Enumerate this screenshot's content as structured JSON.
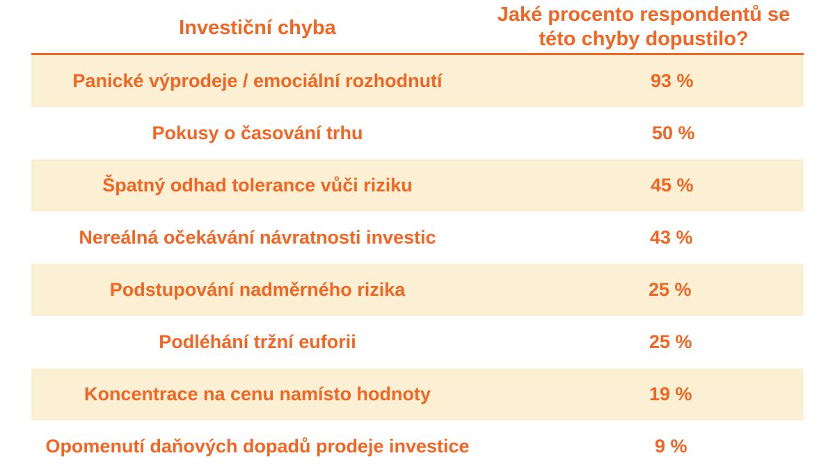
{
  "header": {
    "col1": "Investiční chyba",
    "col2_line1": "Jaké procento respondentů se",
    "col2_line2": "této chyby dopustilo?"
  },
  "colors": {
    "accent": "#f26522",
    "row_shade": "#fbf0d3",
    "background": "#ffffff"
  },
  "rows": [
    {
      "label": "Panické výprodeje / emociální rozhodnutí",
      "value": "93 %"
    },
    {
      "label": "Pokusy o časování trhu",
      "value": "50 %"
    },
    {
      "label": "Špatný odhad tolerance vůči riziku",
      "value": "45 %"
    },
    {
      "label": "Nereálná očekávání návratnosti investic",
      "value": "43 %"
    },
    {
      "label": "Podstupování nadměrného rizika",
      "value": "25 %"
    },
    {
      "label": "Podléhání tržní euforii",
      "value": "25 %"
    },
    {
      "label": "Koncentrace na cenu namísto hodnoty",
      "value": "19 %"
    },
    {
      "label": "Opomenutí daňových dopadů prodeje investice",
      "value": "9 %"
    }
  ]
}
